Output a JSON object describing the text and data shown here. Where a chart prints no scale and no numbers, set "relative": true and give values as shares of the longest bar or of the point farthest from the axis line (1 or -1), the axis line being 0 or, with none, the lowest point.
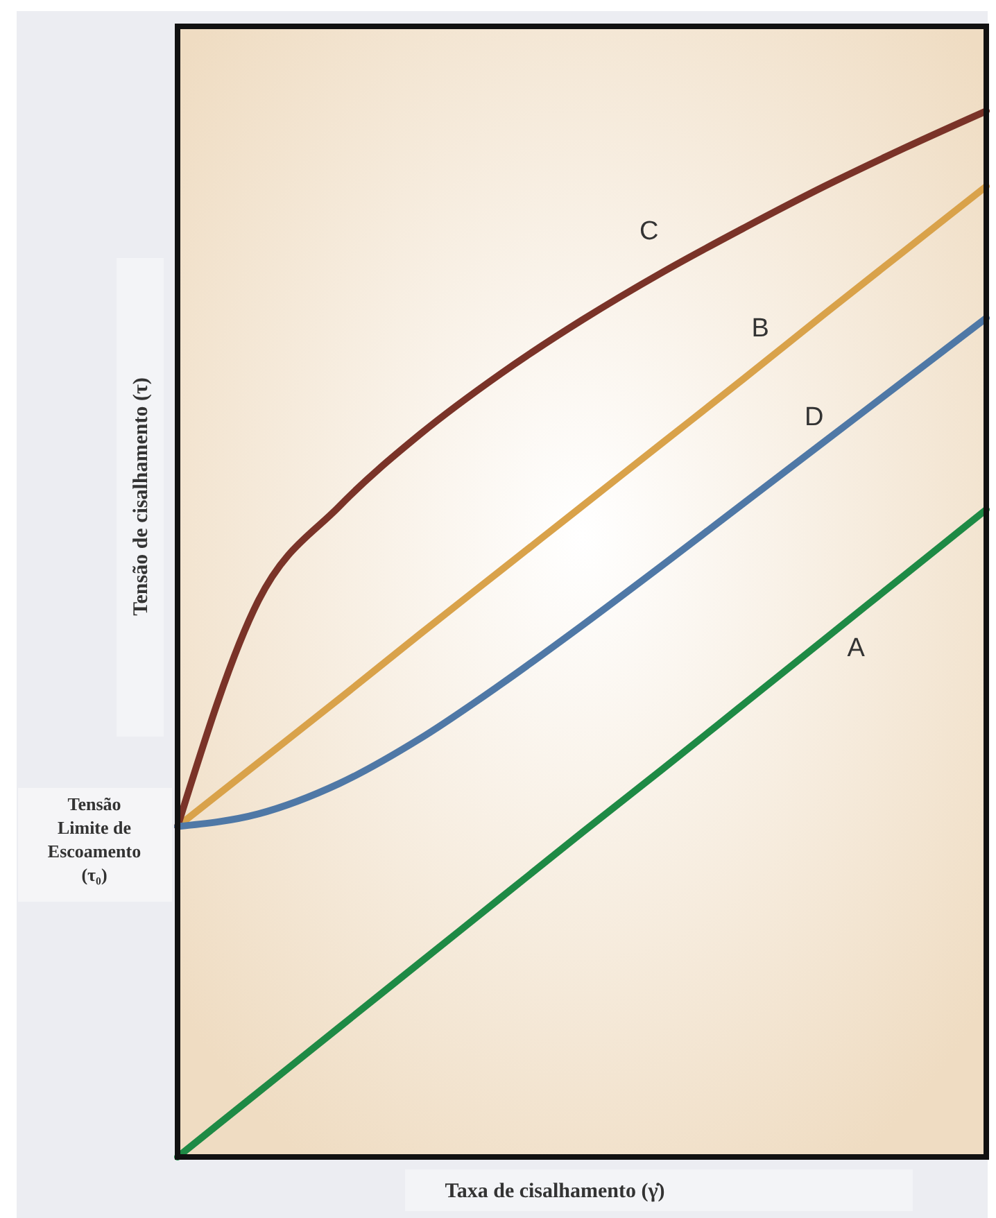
{
  "chart_data": {
    "type": "line",
    "relative": true,
    "xlabel": "Taxa de cisalhamento (γ̇)",
    "ylabel": "Tensão de cisalhamento (τ)",
    "categories": [
      null,
      null,
      null,
      null,
      null,
      null,
      null,
      null,
      null,
      null,
      null
    ],
    "series": [
      {
        "name": "A",
        "color": "#1e8a45",
        "values": [
          0,
          0.062,
          0.124,
          0.186,
          0.248,
          0.31,
          0.371,
          0.433,
          0.495,
          0.557,
          0.619
        ]
      },
      {
        "name": "B",
        "color": "#d9a24a",
        "values": [
          0.316,
          0.377,
          0.438,
          0.5,
          0.561,
          0.622,
          0.683,
          0.744,
          0.806,
          0.867,
          0.928
        ]
      },
      {
        "name": "C",
        "color": "#7a3328",
        "values": [
          0.316,
          0.532,
          0.622,
          0.691,
          0.749,
          0.8,
          0.846,
          0.888,
          0.928,
          0.965,
          1
        ]
      },
      {
        "name": "D",
        "color": "#4f78a6",
        "values": [
          0.316,
          0.328,
          0.357,
          0.4,
          0.452,
          0.508,
          0.566,
          0.625,
          0.684,
          0.743,
          0.802
        ]
      }
    ],
    "annotations": [
      "Tensão Limite de Escoamento (τ₀)"
    ],
    "line_style": "solid",
    "marker": "none",
    "grid": false,
    "legend": false
  }
}
